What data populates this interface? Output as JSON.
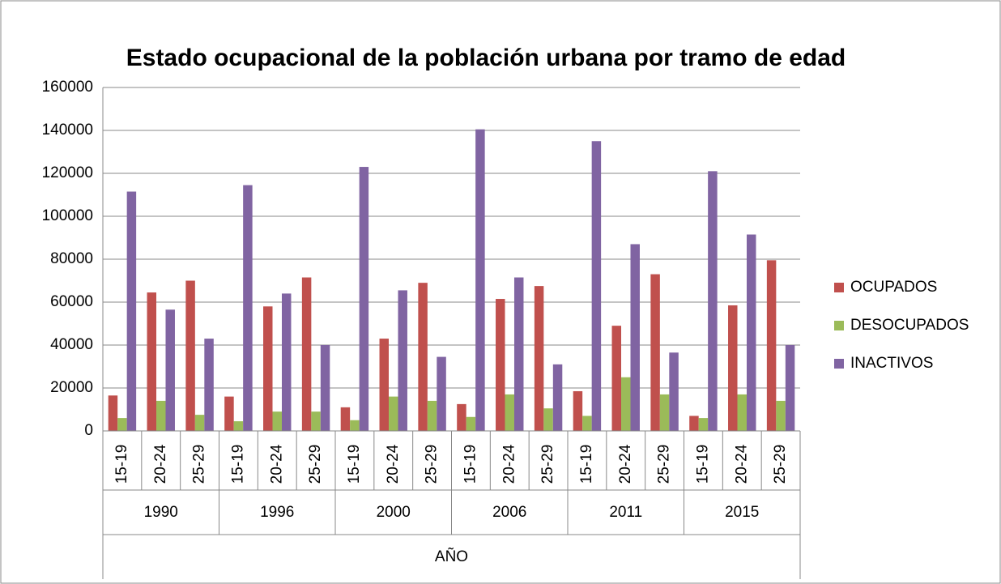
{
  "chart_data": {
    "type": "bar",
    "title": "Estado ocupacional de la población urbana por tramo de edad",
    "x_label": "AÑO",
    "categories": [
      "15-19",
      "20-24",
      "25-29",
      "15-19",
      "20-24",
      "25-29",
      "15-19",
      "20-24",
      "25-29",
      "15-19",
      "20-24",
      "25-29",
      "15-19",
      "20-24",
      "25-29",
      "15-19",
      "20-24",
      "25-29"
    ],
    "groups": [
      "1990",
      "1996",
      "2000",
      "2006",
      "2011",
      "2015"
    ],
    "series": [
      {
        "name": "OCUPADOS",
        "color": "#c0504d",
        "values": [
          16500,
          64500,
          70000,
          16000,
          58000,
          71500,
          11000,
          43000,
          69000,
          12500,
          61500,
          67500,
          18500,
          49000,
          73000,
          7000,
          58500,
          79500
        ]
      },
      {
        "name": "DESOCUPADOS",
        "color": "#9bbb59",
        "values": [
          6000,
          14000,
          7500,
          4500,
          9000,
          9000,
          5000,
          16000,
          14000,
          6500,
          17000,
          10500,
          7000,
          25000,
          17000,
          6000,
          17000,
          14000
        ]
      },
      {
        "name": "INACTIVOS",
        "color": "#8064a2",
        "values": [
          111500,
          56500,
          43000,
          114500,
          64000,
          40000,
          123000,
          65500,
          34500,
          140500,
          71500,
          31000,
          135000,
          87000,
          36500,
          121000,
          91500,
          40000
        ]
      }
    ],
    "ylim": [
      0,
      160000
    ],
    "yticks": [
      0,
      20000,
      40000,
      60000,
      80000,
      100000,
      120000,
      140000,
      160000
    ],
    "grid": true,
    "legend": "right"
  }
}
